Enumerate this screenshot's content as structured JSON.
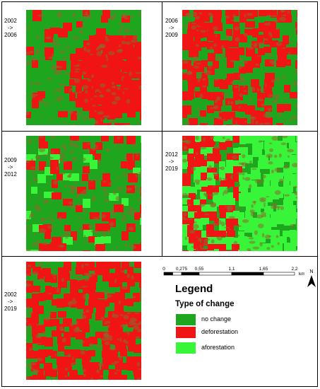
{
  "colors": {
    "no_change": "#1fa61f",
    "deforestation": "#f01414",
    "aforestation": "#39f539",
    "brown": "#8a6a2e"
  },
  "panels": [
    {
      "id": "p1",
      "lines": [
        "2002",
        "->",
        "2006"
      ]
    },
    {
      "id": "p2",
      "lines": [
        "2006",
        "->",
        "2009"
      ]
    },
    {
      "id": "p3",
      "lines": [
        "2009",
        "->",
        "2012"
      ]
    },
    {
      "id": "p4",
      "lines": [
        "2012",
        "->",
        "2019"
      ]
    },
    {
      "id": "p5",
      "lines": [
        "2002",
        "->",
        "2019"
      ]
    }
  ],
  "scale": {
    "ticks": [
      "0",
      "0,275",
      "0,55",
      "1,1",
      "1,65",
      "2,2"
    ],
    "unit": "km"
  },
  "north_label": "N",
  "legend": {
    "title": "Legend",
    "subtitle": "Type of change",
    "items": [
      {
        "label": "no change",
        "color": "#1fa61f"
      },
      {
        "label": "deforestation",
        "color": "#f01414"
      },
      {
        "label": "aforestation",
        "color": "#39f539"
      }
    ]
  }
}
